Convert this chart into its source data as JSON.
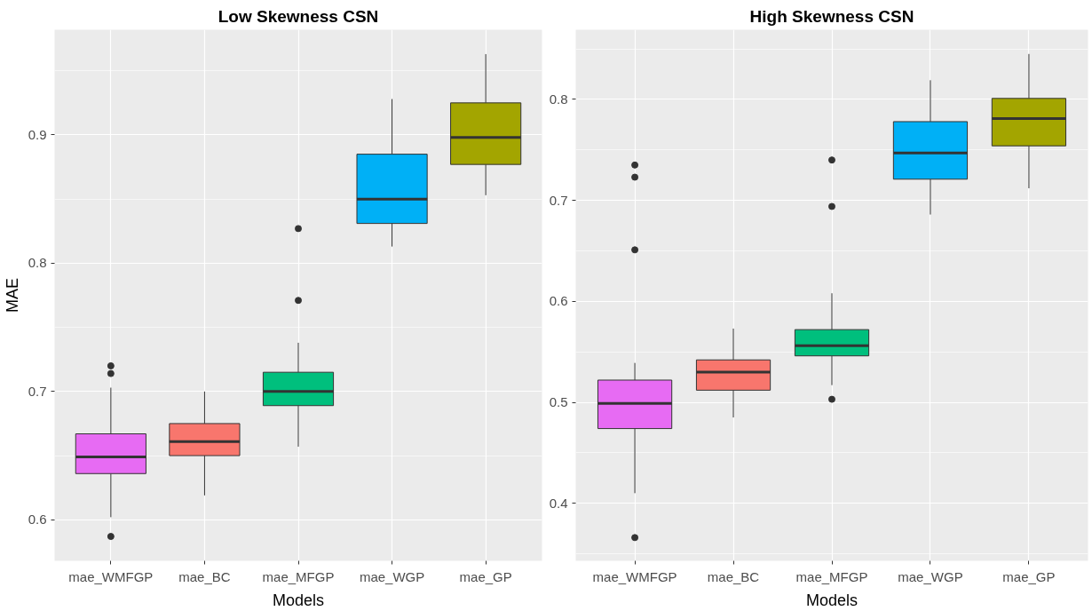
{
  "chart_data": [
    {
      "type": "box",
      "title": "Low Skewness CSN",
      "xlabel": "Models",
      "ylabel": "MAE",
      "categories": [
        "mae_WMFGP",
        "mae_BC",
        "mae_MFGP",
        "mae_WGP",
        "mae_GP"
      ],
      "colors": [
        "#e76bf3",
        "#f8766d",
        "#00bf7d",
        "#00b0f6",
        "#a3a500"
      ],
      "boxes": [
        {
          "low": 0.602,
          "q1": 0.636,
          "median": 0.649,
          "q3": 0.667,
          "high": 0.703,
          "outliers": [
            0.72,
            0.714,
            0.587
          ]
        },
        {
          "low": 0.619,
          "q1": 0.65,
          "median": 0.661,
          "q3": 0.675,
          "high": 0.7
        },
        {
          "low": 0.657,
          "q1": 0.689,
          "median": 0.7,
          "q3": 0.715,
          "high": 0.738,
          "outliers": [
            0.827,
            0.771
          ]
        },
        {
          "low": 0.813,
          "q1": 0.831,
          "median": 0.85,
          "q3": 0.885,
          "high": 0.928
        },
        {
          "low": 0.853,
          "q1": 0.877,
          "median": 0.898,
          "q3": 0.925,
          "high": 0.963
        }
      ],
      "ylim": [
        0.568,
        0.982
      ],
      "yticks": [
        0.6,
        0.7,
        0.8,
        0.9
      ],
      "grid": true
    },
    {
      "type": "box",
      "title": "High Skewness CSN",
      "xlabel": "Models",
      "categories": [
        "mae_WMFGP",
        "mae_BC",
        "mae_MFGP",
        "mae_WGP",
        "mae_GP"
      ],
      "colors": [
        "#e76bf3",
        "#f8766d",
        "#00bf7d",
        "#00b0f6",
        "#a3a500"
      ],
      "boxes": [
        {
          "low": 0.41,
          "q1": 0.474,
          "median": 0.499,
          "q3": 0.522,
          "high": 0.539,
          "outliers": [
            0.735,
            0.723,
            0.651,
            0.366
          ]
        },
        {
          "low": 0.485,
          "q1": 0.512,
          "median": 0.53,
          "q3": 0.542,
          "high": 0.573
        },
        {
          "low": 0.517,
          "q1": 0.546,
          "median": 0.556,
          "q3": 0.572,
          "high": 0.608,
          "outliers": [
            0.74,
            0.694,
            0.503
          ]
        },
        {
          "low": 0.686,
          "q1": 0.721,
          "median": 0.747,
          "q3": 0.778,
          "high": 0.819
        },
        {
          "low": 0.712,
          "q1": 0.754,
          "median": 0.781,
          "q3": 0.801,
          "high": 0.845
        }
      ],
      "ylim": [
        0.343,
        0.869
      ],
      "yticks": [
        0.4,
        0.5,
        0.6,
        0.7,
        0.8
      ],
      "grid": true
    }
  ]
}
